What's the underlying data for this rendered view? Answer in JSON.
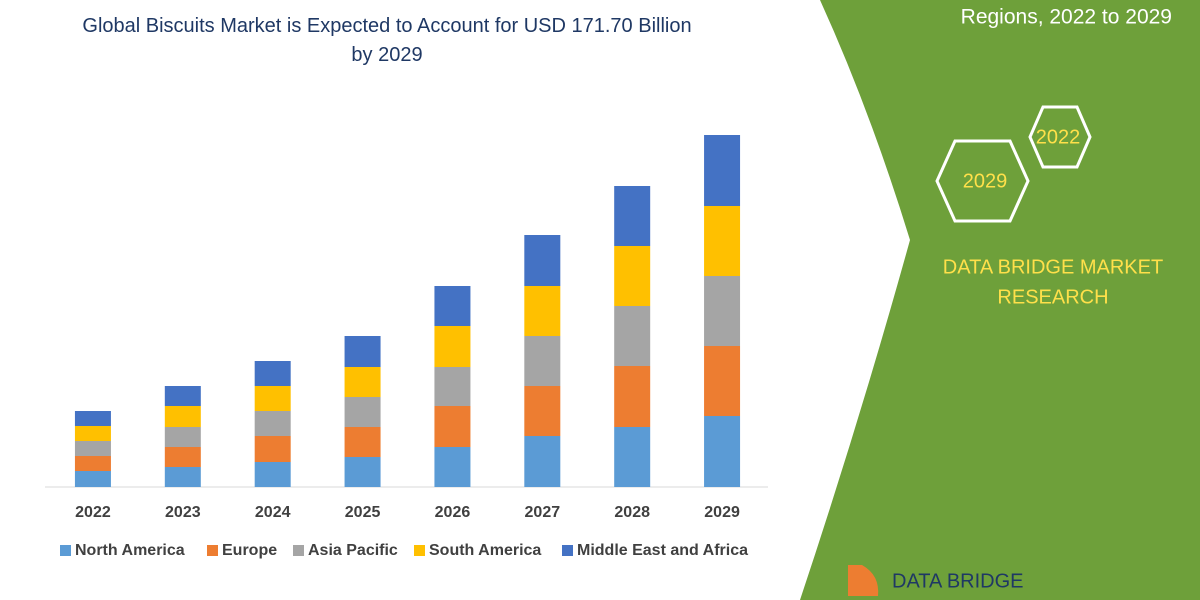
{
  "chart_data": {
    "type": "stacked_bar",
    "title": "Global Biscuits Market is Expected to Account for USD 171.70 Billion by 2029",
    "categories": [
      "2022",
      "2023",
      "2024",
      "2025",
      "2026",
      "2027",
      "2028",
      "2029"
    ],
    "ylim": [
      0,
      360
    ],
    "series": [
      {
        "name": "North America",
        "color": "#5b9bd5",
        "values": [
          16,
          20,
          25,
          30,
          40,
          51,
          60,
          71
        ]
      },
      {
        "name": "Europe",
        "color": "#ed7d31",
        "values": [
          15,
          20,
          26,
          30,
          41,
          50,
          61,
          70
        ]
      },
      {
        "name": "Asia Pacific",
        "color": "#a5a5a5",
        "values": [
          15,
          20,
          25,
          30,
          39,
          50,
          60,
          70
        ]
      },
      {
        "name": "South America",
        "color": "#ffc000",
        "values": [
          15,
          21,
          25,
          30,
          41,
          50,
          60,
          70
        ]
      },
      {
        "name": "Middle East and Africa",
        "color": "#4472c4",
        "values": [
          15,
          20,
          25,
          31,
          40,
          51,
          60,
          71
        ]
      }
    ]
  },
  "panel": {
    "subtitle": "Regions, 2022 to 2029",
    "hexagons": [
      "2022",
      "2029"
    ],
    "brand": [
      "DATA BRIDGE MARKET",
      "RESEARCH"
    ],
    "logo": "DATA BRIDGE"
  }
}
